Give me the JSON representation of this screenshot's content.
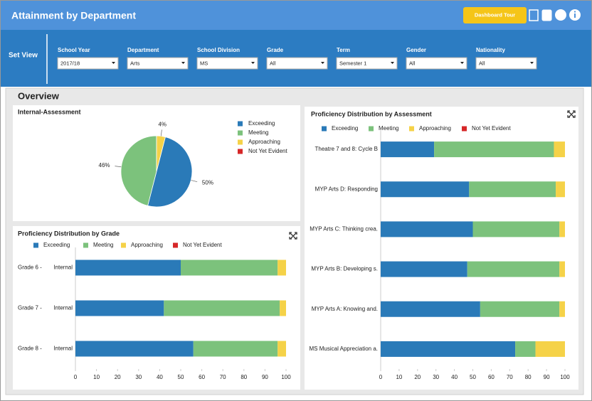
{
  "header": {
    "title": "Attainment by Department",
    "button": "Dashboard Tour"
  },
  "filters": {
    "label": "Set View",
    "fields": [
      {
        "label": "School Year",
        "value": "2017/18"
      },
      {
        "label": "Department",
        "value": "Arts"
      },
      {
        "label": "School Division",
        "value": "MS"
      },
      {
        "label": "Grade",
        "value": "All"
      },
      {
        "label": "Term",
        "value": "Semester 1"
      },
      {
        "label": "Gender",
        "value": "All"
      },
      {
        "label": "Nationality",
        "value": "All"
      }
    ]
  },
  "overview": {
    "title": "Overview"
  },
  "chart_data": [
    {
      "type": "pie",
      "title": "Internal-Assessment",
      "categories": [
        "Exceeding",
        "Meeting",
        "Approaching",
        "Not Yet Evident"
      ],
      "values": [
        50,
        46,
        4,
        0
      ],
      "value_labels": [
        "50%",
        "46%",
        "4%",
        null
      ],
      "colors": [
        "#2a7ab8",
        "#7cc27c",
        "#f5d248",
        "#d62728"
      ]
    },
    {
      "type": "bar",
      "orientation": "horizontal",
      "stacked": true,
      "title": "Proficiency Distribution by Grade",
      "groups": [
        "Grade 6 -",
        "Grade 7 -",
        "Grade 8 -"
      ],
      "categories": [
        "Internal",
        "Internal",
        "Internal"
      ],
      "series": [
        {
          "name": "Exceeding",
          "color": "#2a7ab8",
          "values": [
            50,
            42,
            56
          ]
        },
        {
          "name": "Meeting",
          "color": "#7cc27c",
          "values": [
            46,
            55,
            40
          ]
        },
        {
          "name": "Approaching",
          "color": "#f5d248",
          "values": [
            4,
            3,
            4
          ]
        },
        {
          "name": "Not Yet Evident",
          "color": "#d62728",
          "values": [
            0,
            0,
            0
          ]
        }
      ],
      "xlim": [
        0,
        100
      ],
      "xticks": [
        0,
        10,
        20,
        30,
        40,
        50,
        60,
        70,
        80,
        90,
        100
      ]
    },
    {
      "type": "bar",
      "orientation": "horizontal",
      "stacked": true,
      "title": "Proficiency Distribution by Assessment",
      "categories": [
        "Theatre 7 and 8: Cycle B",
        "MYP Arts D: Responding",
        "MYP Arts C: Thinking crea.",
        "MYP Arts B: Developing s.",
        "MYP Arts A: Knowing and.",
        "MS Musical Appreciation a."
      ],
      "series": [
        {
          "name": "Exceeding",
          "color": "#2a7ab8",
          "values": [
            29,
            48,
            50,
            47,
            54,
            73
          ]
        },
        {
          "name": "Meeting",
          "color": "#7cc27c",
          "values": [
            65,
            47,
            47,
            50,
            43,
            11
          ]
        },
        {
          "name": "Approaching",
          "color": "#f5d248",
          "values": [
            6,
            5,
            3,
            3,
            3,
            16
          ]
        },
        {
          "name": "Not Yet Evident",
          "color": "#d62728",
          "values": [
            0,
            0,
            0,
            0,
            0,
            0
          ]
        }
      ],
      "xlim": [
        0,
        100
      ],
      "xticks": [
        0,
        10,
        20,
        30,
        40,
        50,
        60,
        70,
        80,
        90,
        100
      ]
    }
  ]
}
